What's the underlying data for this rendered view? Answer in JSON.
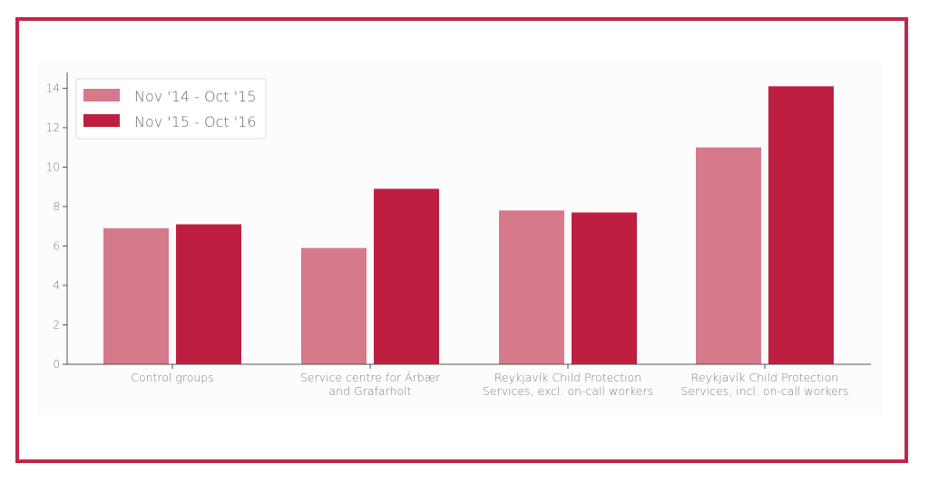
{
  "colors": {
    "frame": "#c0254a",
    "series_light": "#d6798a",
    "series_dark": "#be1f40",
    "axis": "#555555",
    "text": "#777777"
  },
  "chart_data": {
    "type": "bar",
    "categories": [
      [
        "Control groups"
      ],
      [
        "Service centre for Árbær",
        "and Grafarholt"
      ],
      [
        "Reykjavík Child Protection",
        "Services, excl. on-call workers"
      ],
      [
        "Reykjavík Child Protection",
        "Services, incl. on-call workers"
      ]
    ],
    "series": [
      {
        "name": "Nov '14 - Oct '15",
        "values": [
          6.9,
          5.9,
          7.8,
          11.0
        ]
      },
      {
        "name": "Nov '15 - Oct '16",
        "values": [
          7.1,
          8.9,
          7.7,
          14.1
        ]
      }
    ],
    "ylim": [
      0,
      14.8
    ],
    "yticks": [
      "0",
      "2",
      "4",
      "6",
      "8",
      "10",
      "12",
      "14"
    ],
    "xlabel": "",
    "ylabel": "",
    "grid": false,
    "legend": "top-left"
  }
}
